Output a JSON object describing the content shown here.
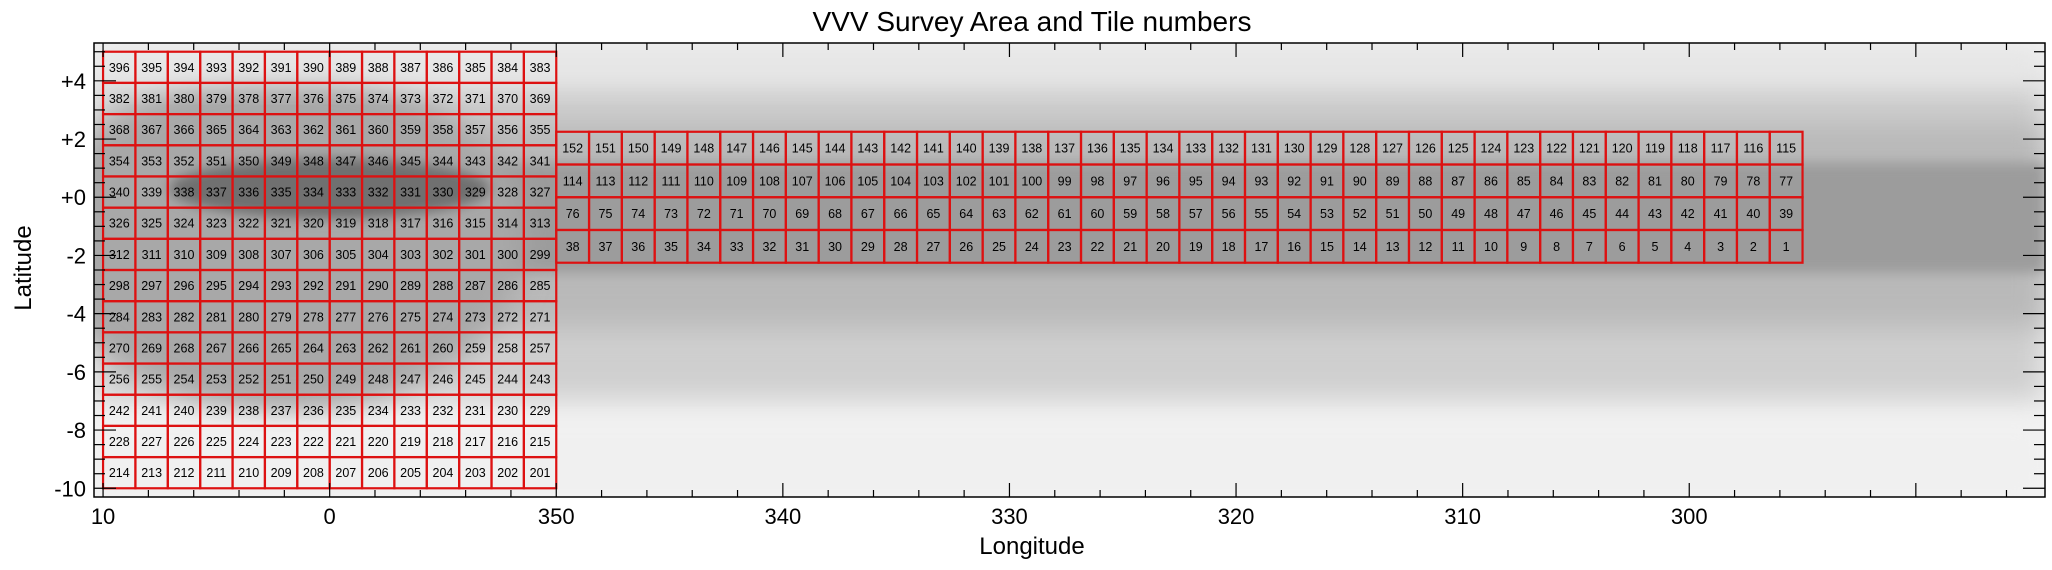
{
  "chart_data": {
    "type": "heatmap",
    "title": "VVV Survey Area and Tile numbers",
    "xlabel": "Longitude",
    "ylabel": "Latitude",
    "xlim": [
      10.4,
      284.3
    ],
    "ylim": [
      -10.3,
      5.3
    ],
    "x_ticks": [
      {
        "value": 10,
        "label": "10"
      },
      {
        "value": 0,
        "label": "0"
      },
      {
        "value": -10,
        "label": "350"
      },
      {
        "value": -20,
        "label": "340"
      },
      {
        "value": -30,
        "label": "330"
      },
      {
        "value": -40,
        "label": "320"
      },
      {
        "value": -50,
        "label": "310"
      },
      {
        "value": -60,
        "label": "300"
      }
    ],
    "y_ticks": [
      {
        "value": 4,
        "label": "+4"
      },
      {
        "value": 2,
        "label": "+2"
      },
      {
        "value": 0,
        "label": "+0"
      },
      {
        "value": -2,
        "label": "-2"
      },
      {
        "value": -4,
        "label": "-4"
      },
      {
        "value": -6,
        "label": "-6"
      },
      {
        "value": -8,
        "label": "-8"
      },
      {
        "value": -10,
        "label": "-10"
      }
    ],
    "background": "greyscale extinction map",
    "grid_color": "#dd1111",
    "bulge_tiles": {
      "first_tile": 201,
      "last_tile": 396,
      "columns": 14,
      "rows": 14,
      "l_range": [
        10.0,
        -10.0
      ],
      "b_range": [
        -10.0,
        5.0
      ],
      "numbering": "row-major, tile number increasing toward +b and toward +l"
    },
    "disk_tiles": {
      "first_tile": 1,
      "last_tile": 152,
      "columns": 38,
      "rows": 4,
      "l_range": [
        -10.0,
        -65.0
      ],
      "b_range": [
        -2.25,
        2.25
      ],
      "numbering": "row-major, tile number increasing toward +b and toward +l"
    }
  }
}
